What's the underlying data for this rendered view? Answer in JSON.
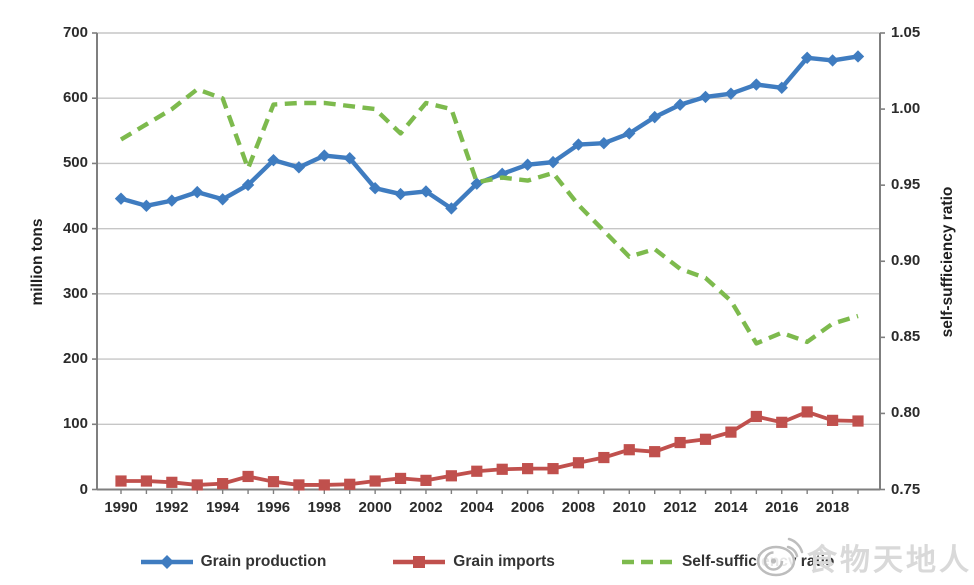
{
  "colors": {
    "production": "#3F7CC0",
    "imports": "#C0504D",
    "ratio": "#7DBA4D",
    "grid": "#C6C6C6",
    "axis": "#7F7F7F",
    "tick_text": "#2B2B2B",
    "watermark": "#D9D9D9"
  },
  "watermark": {
    "icon": "weibo-snail-icon",
    "text": "食物天地人"
  },
  "chart_data": {
    "type": "line",
    "title": "",
    "x": [
      1990,
      1991,
      1992,
      1993,
      1994,
      1995,
      1996,
      1997,
      1998,
      1999,
      2000,
      2001,
      2002,
      2003,
      2004,
      2005,
      2006,
      2007,
      2008,
      2009,
      2010,
      2011,
      2012,
      2013,
      2014,
      2015,
      2016,
      2017,
      2018,
      2019
    ],
    "x_tick_labels": [
      "1990",
      "1992",
      "1994",
      "1996",
      "1998",
      "2000",
      "2002",
      "2004",
      "2006",
      "2008",
      "2010",
      "2012",
      "2014",
      "2016",
      "2018"
    ],
    "series": [
      {
        "name": "Grain production",
        "axis": "left",
        "marker": "diamond",
        "dash": "solid",
        "color_key": "production",
        "values": [
          446,
          435,
          443,
          456,
          445,
          467,
          505,
          494,
          512,
          508,
          462,
          453,
          457,
          431,
          469,
          484,
          498,
          502,
          529,
          531,
          546,
          571,
          590,
          602,
          607,
          621,
          616,
          662,
          658,
          664
        ]
      },
      {
        "name": "Grain imports",
        "axis": "left",
        "marker": "square",
        "dash": "solid",
        "color_key": "imports",
        "values": [
          13,
          13,
          11,
          7,
          9,
          20,
          12,
          7,
          7,
          8,
          13,
          17,
          14,
          21,
          28,
          31,
          32,
          32,
          41,
          49,
          61,
          58,
          72,
          77,
          88,
          112,
          103,
          119,
          106,
          105
        ]
      },
      {
        "name": "Self-sufficiency ratio",
        "axis": "right",
        "marker": "none",
        "dash": "dashed",
        "color_key": "ratio",
        "values": [
          0.98,
          0.99,
          1.0,
          1.013,
          1.007,
          0.961,
          1.003,
          1.004,
          1.004,
          1.002,
          1.0,
          0.984,
          1.004,
          1.0,
          0.952,
          0.955,
          0.953,
          0.958,
          0.937,
          0.92,
          0.903,
          0.908,
          0.895,
          0.889,
          0.874,
          0.846,
          0.853,
          0.847,
          0.859,
          0.864
        ]
      }
    ],
    "left_axis": {
      "label": "million tons",
      "min": 0,
      "max": 700,
      "step": 100,
      "ticks": [
        "700",
        "600",
        "500",
        "400",
        "300",
        "200",
        "100",
        "0"
      ]
    },
    "right_axis": {
      "label": "self-sufficiency ratio",
      "min": 0.75,
      "max": 1.05,
      "step": 0.05,
      "ticks": [
        "1.05",
        "1.00",
        "0.95",
        "0.90",
        "0.85",
        "0.80",
        "0.75"
      ]
    },
    "legend": {
      "position": "bottom",
      "entries": [
        "Grain production",
        "Grain imports",
        "Self-sufficiency ratio"
      ]
    },
    "grid": "horizontal"
  }
}
